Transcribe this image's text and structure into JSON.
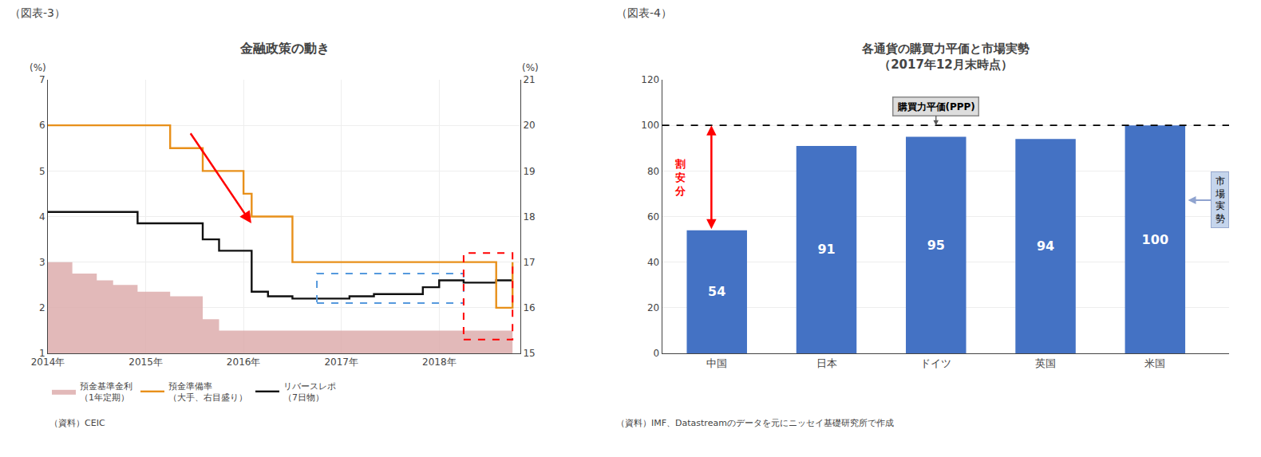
{
  "chart_data": [
    {
      "type": "line",
      "title": "金融政策の動き",
      "figure_label": "（図表-3）",
      "source": "（資料）CEIC",
      "ylabel": "(%)",
      "y2label": "(%)",
      "xlim": [
        2014.0,
        2018.83
      ],
      "xticks": [
        {
          "value": 2014,
          "label": "2014年"
        },
        {
          "value": 2015,
          "label": "2015年"
        },
        {
          "value": 2016,
          "label": "2016年"
        },
        {
          "value": 2017,
          "label": "2017年"
        },
        {
          "value": 2018,
          "label": "2018年"
        }
      ],
      "ylim": [
        1,
        7
      ],
      "yticks": [
        1,
        2,
        3,
        4,
        5,
        6,
        7
      ],
      "y2lim": [
        15,
        21
      ],
      "y2ticks": [
        15,
        16,
        17,
        18,
        19,
        20,
        21
      ],
      "grid": true,
      "legend": "bottom",
      "series": [
        {
          "name": "預金基準金利\n（1年定期）",
          "type": "area",
          "color": "#dba8a8",
          "line_style": "steps",
          "x": [
            2014.0,
            2014.25,
            2014.5,
            2014.667,
            2014.917,
            2015.25,
            2015.583,
            2015.75,
            2016.0,
            2018.75
          ],
          "values": [
            3.0,
            2.75,
            2.6,
            2.5,
            2.35,
            2.25,
            1.75,
            1.5,
            1.5,
            1.5
          ],
          "base": 1.0
        },
        {
          "name": "預金準備率\n（大手、右目盛り）",
          "type": "line",
          "axis": "y2",
          "color": "#e8901a",
          "line_style": "steps",
          "x": [
            2014.0,
            2014.917,
            2015.25,
            2015.583,
            2016.0,
            2016.083,
            2016.5,
            2018.167,
            2018.583,
            2018.75
          ],
          "values": [
            20.0,
            20.0,
            19.5,
            19.0,
            18.5,
            18.0,
            17.0,
            17.0,
            16.0,
            17.0
          ]
        },
        {
          "name": "リバースレポ\n（7日物）",
          "type": "line",
          "color": "#111111",
          "line_style": "steps",
          "x": [
            2014.0,
            2014.5,
            2014.917,
            2015.583,
            2015.75,
            2016.0,
            2016.083,
            2016.25,
            2016.5,
            2017.0,
            2017.083,
            2017.333,
            2017.833,
            2018.0,
            2018.25,
            2018.583,
            2018.75
          ],
          "values": [
            4.1,
            4.1,
            3.85,
            3.5,
            3.25,
            3.25,
            2.35,
            2.25,
            2.2,
            2.2,
            2.25,
            2.3,
            2.45,
            2.6,
            2.55,
            2.6,
            2.6
          ]
        }
      ],
      "highlight_boxes": [
        {
          "x": [
            2016.75,
            2018.25
          ],
          "y": [
            2.1,
            2.75
          ],
          "color": "#5599dd"
        },
        {
          "x": [
            2018.25,
            2018.75
          ],
          "y": [
            1.3,
            3.2
          ],
          "color": "red"
        }
      ],
      "arrows": [
        {
          "x": [
            2015.45,
            2016.08
          ],
          "y": [
            5.85,
            3.85
          ],
          "color": "red"
        }
      ]
    },
    {
      "type": "bar",
      "title": "各通貨の購買力平価と市場実勢",
      "subtitle": "（2017年12月末時点）",
      "figure_label": "（図表-4）",
      "source": "（資料）IMF、Datastreamのデータを元にニッセイ基礎研究所で作成",
      "categories": [
        "中国",
        "日本",
        "ドイツ",
        "英国",
        "米国"
      ],
      "values": [
        54,
        91,
        95,
        94,
        100
      ],
      "color": "#4472c4",
      "ylim": [
        0,
        120
      ],
      "yticks": [
        0,
        20,
        40,
        60,
        80,
        100,
        120
      ],
      "grid": true,
      "data_labels": true,
      "reference_line": {
        "value": 100,
        "label": "購買力平価(PPP)"
      },
      "gap_label": "割\n安\n分",
      "market_label": "市\n場\n実\n勢"
    }
  ]
}
